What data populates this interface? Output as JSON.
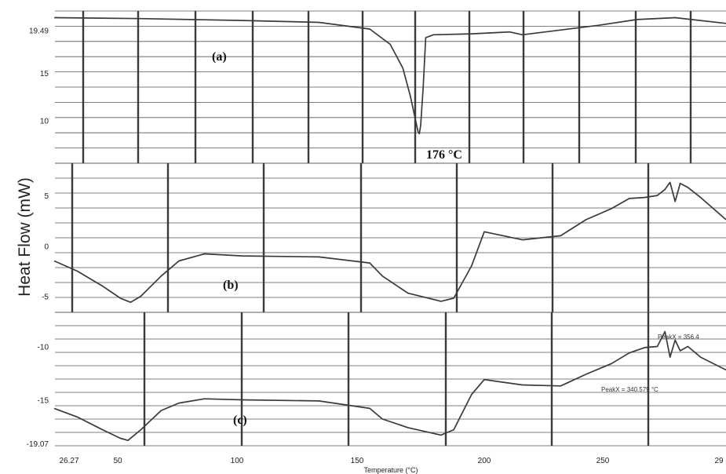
{
  "ylabel": "Heat Flow (mW)",
  "xlabel": "Temperature (°C)",
  "chart_data": {
    "type": "line",
    "ylabel": "Heat Flow (mW)",
    "xlabel": "Temperature (°C)",
    "x_ticks": [
      "26.27",
      "50",
      "100",
      "150",
      "200",
      "250",
      "29"
    ],
    "grid": true,
    "panels": [
      {
        "label": "(a)",
        "y_ticks": [
          "19.49",
          "15",
          "10"
        ],
        "annotation": "176 °C",
        "series": [
          {
            "x": [
              26,
              60,
              100,
              130,
              150,
              158,
              163,
              166,
              168,
              169,
              169.5,
              170,
              171,
              172,
              175,
              190,
              205,
              210,
              240,
              255,
              270,
              290
            ],
            "y": [
              20.8,
              20.7,
              20.5,
              20.3,
              19.6,
              18.0,
              15.5,
              12.5,
              10.0,
              8.8,
              8.6,
              9.5,
              13.5,
              18.7,
              19.0,
              19.1,
              19.3,
              19.0,
              20.0,
              20.6,
              20.8,
              20.2
            ]
          }
        ]
      },
      {
        "label": "(b)",
        "y_ticks": [
          "5",
          "0",
          "-5"
        ],
        "series": [
          {
            "x": [
              26,
              35,
              45,
              52,
              56,
              60,
              68,
              75,
              85,
              100,
              130,
              150,
              155,
              165,
              178,
              183,
              190,
              195,
              210,
              225,
              235,
              245,
              252,
              258,
              263,
              266,
              268,
              270,
              272,
              275,
              280,
              290
            ],
            "y": [
              -1.5,
              -2.5,
              -4.0,
              -5.2,
              -5.6,
              -5.0,
              -3.0,
              -1.5,
              -0.8,
              -1.0,
              -1.1,
              -1.7,
              -3.0,
              -4.7,
              -5.5,
              -5.2,
              -2.0,
              1.4,
              0.6,
              1.0,
              2.6,
              3.7,
              4.7,
              4.8,
              5.0,
              5.6,
              6.3,
              4.4,
              6.2,
              5.8,
              4.8,
              2.6
            ]
          }
        ]
      },
      {
        "label": "(c)",
        "y_ticks": [
          "-10",
          "-15",
          "-19.07"
        ],
        "peak_notes": [
          "PeakX = 356.4",
          "PeakX = 340.579 °C"
        ],
        "series": [
          {
            "x": [
              26,
              35,
              45,
              52,
              55,
              60,
              68,
              75,
              85,
              100,
              130,
              150,
              155,
              165,
              178,
              183,
              190,
              195,
              210,
              225,
              235,
              245,
              252,
              258,
              263,
              266,
              268,
              270,
              272,
              275,
              280,
              290
            ],
            "y": [
              -15.8,
              -16.6,
              -17.8,
              -18.6,
              -18.8,
              -17.8,
              -16.0,
              -15.3,
              -14.9,
              -15.0,
              -15.1,
              -15.8,
              -16.8,
              -17.6,
              -18.3,
              -17.8,
              -14.5,
              -13.1,
              -13.6,
              -13.7,
              -12.6,
              -11.6,
              -10.6,
              -10.1,
              -10.0,
              -8.6,
              -11.0,
              -9.4,
              -10.4,
              -10.0,
              -11.0,
              -12.2
            ]
          }
        ]
      }
    ]
  }
}
